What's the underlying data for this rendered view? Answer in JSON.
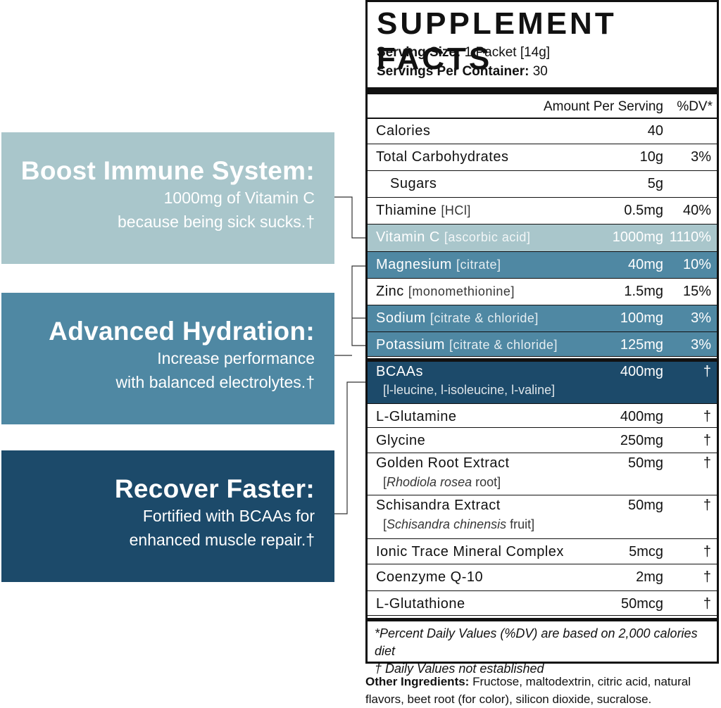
{
  "callouts": [
    {
      "title": "Boost Immune System:",
      "lines": [
        "1000mg of Vitamin C",
        "because being sick sucks.†"
      ],
      "background": "#a9c6cb"
    },
    {
      "title": "Advanced Hydration:",
      "lines": [
        "Increase performance",
        "with balanced electrolytes.†"
      ],
      "background": "#4f88a3"
    },
    {
      "title": "Recover Faster:",
      "lines": [
        "Fortified with BCAAs for",
        "enhanced muscle repair.†"
      ],
      "background": "#1c4a6a"
    }
  ],
  "facts": {
    "title": "SUPPLEMENT FACTS",
    "serving_size_label": "Serving Size:",
    "serving_size": "1 Packet [14g]",
    "servings_label": "Servings Per Container:",
    "servings": "30",
    "header": [
      "Amount Per Serving",
      "%DV*"
    ],
    "rows": [
      {
        "name": "Calories",
        "amount": "40"
      },
      {
        "name": "Total Carbohydrates",
        "amount": "10g",
        "dv": "3%"
      },
      {
        "name": "Sugars",
        "amount": "5g"
      },
      {
        "name": "Thiamine",
        "detail": "[HCl]",
        "amount": "0.5mg",
        "dv": "40%"
      },
      {
        "name": "Vitamin C",
        "detail": "[ascorbic acid]",
        "amount": "1000mg",
        "dv": "1110%",
        "background": "#a9c6cb"
      },
      {
        "name": "Magnesium",
        "detail": "[citrate]",
        "amount": "40mg",
        "dv": "10%",
        "background": "#4f88a3"
      },
      {
        "name": "Zinc",
        "detail": "[monomethionine]",
        "amount": "1.5mg",
        "dv": "15%"
      },
      {
        "name": "Sodium",
        "detail": "[citrate & chloride]",
        "amount": "100mg",
        "dv": "3%",
        "background": "#4f88a3"
      },
      {
        "name": "Potassium",
        "detail": "[citrate & chloride]",
        "amount": "125mg",
        "dv": "3%",
        "background": "#4f88a3"
      },
      {
        "name": "BCAAs",
        "detail": "[l-leucine, l-isoleucine, l-valine]",
        "amount": "400mg",
        "dv": "†",
        "background": "#1c4a6a"
      },
      {
        "name": "L-Glutamine",
        "amount": "400mg",
        "dv": "†"
      },
      {
        "name": "Glycine",
        "amount": "250mg",
        "dv": "†"
      },
      {
        "name": "Golden Root Extract",
        "detail_parts": [
          "[",
          "Rhodiola rosea",
          " root]"
        ],
        "amount": "50mg",
        "dv": "†"
      },
      {
        "name": "Schisandra Extract",
        "detail_parts": [
          "[",
          "Schisandra chinensis",
          " fruit]"
        ],
        "amount": "50mg",
        "dv": "†"
      },
      {
        "name": "Ionic Trace Mineral Complex",
        "amount": "5mcg",
        "dv": "†"
      },
      {
        "name": "Coenzyme Q-10",
        "amount": "2mg",
        "dv": "†"
      },
      {
        "name": "L-Glutathione",
        "amount": "50mcg",
        "dv": "†"
      }
    ],
    "footnotes": [
      "*Percent Daily Values (%DV) are based on 2,000 calories diet",
      "† Daily Values not established"
    ]
  },
  "other_ingredients": {
    "label": "Other Ingredients:",
    "text": "Fructose, maltodextrin, citric acid, natural flavors, beet root (for color), silicon dioxide, sucralose."
  }
}
